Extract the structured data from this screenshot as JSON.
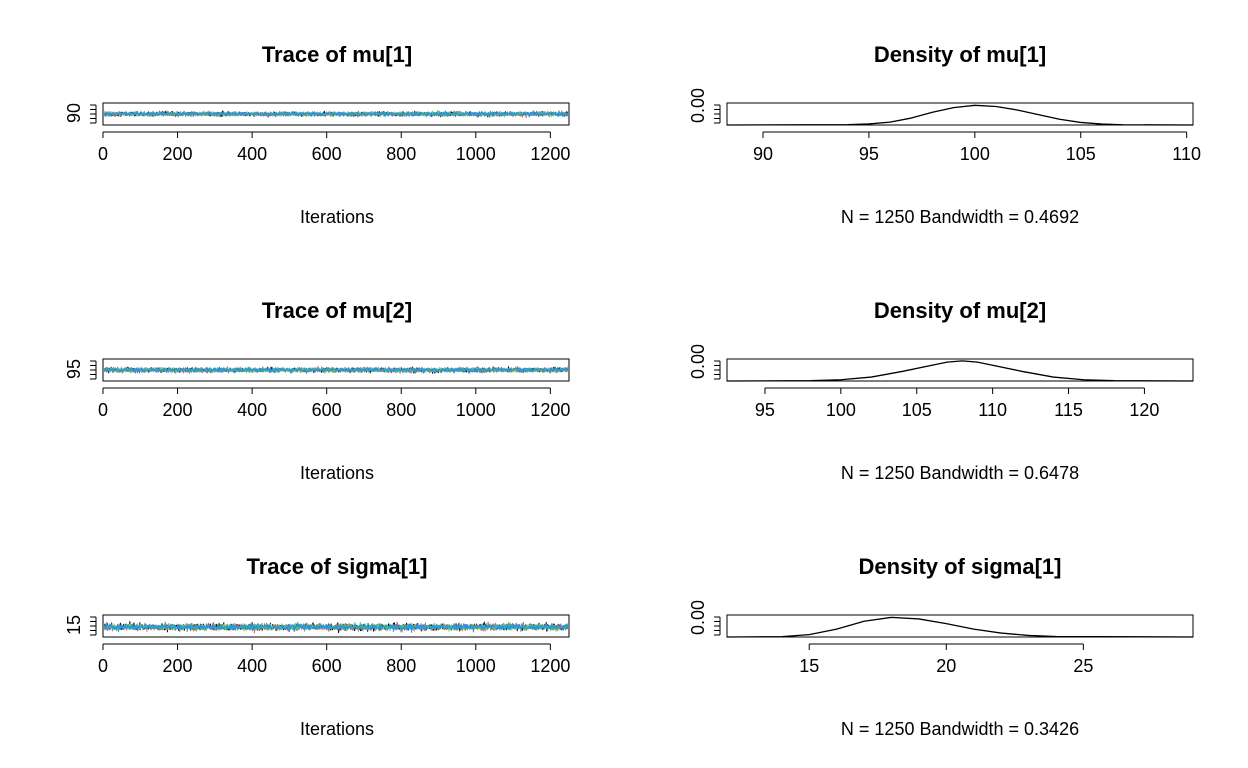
{
  "chart_data": [
    {
      "type": "line",
      "title": "Trace of mu[1]",
      "xlabel": "Iterations",
      "ylabel": "",
      "xlim": [
        0,
        1250
      ],
      "ylim": [
        88,
        112
      ],
      "x_ticks": [
        "0",
        "200",
        "400",
        "600",
        "800",
        "1000",
        "1200"
      ],
      "y_ticks": [
        "90"
      ],
      "chains": 4,
      "center": 100,
      "sd": 2.1,
      "series_colors": [
        "#000000",
        "#DF536B",
        "#61D04F",
        "#2297E6"
      ]
    },
    {
      "type": "area",
      "title": "Density of mu[1]",
      "xlabel": "N = 1250   Bandwidth = 0.4692",
      "ylabel": "",
      "xlim": [
        88.3,
        110.3
      ],
      "ylim": [
        0,
        0.19
      ],
      "x_ticks": [
        "90",
        "95",
        "100",
        "105",
        "110"
      ],
      "y_ticks": [
        "0.00"
      ],
      "x": [
        88.3,
        94,
        95,
        96,
        97,
        98,
        99,
        100,
        101,
        102,
        103,
        104,
        105,
        106,
        107,
        110.3
      ],
      "y": [
        0.0,
        0.003,
        0.009,
        0.025,
        0.06,
        0.11,
        0.15,
        0.17,
        0.16,
        0.13,
        0.09,
        0.05,
        0.022,
        0.008,
        0.002,
        0.0
      ]
    },
    {
      "type": "line",
      "title": "Trace of mu[2]",
      "xlabel": "Iterations",
      "ylabel": "",
      "xlim": [
        0,
        1250
      ],
      "ylim": [
        93,
        123
      ],
      "x_ticks": [
        "0",
        "200",
        "400",
        "600",
        "800",
        "1000",
        "1200"
      ],
      "y_ticks": [
        "95"
      ],
      "chains": 4,
      "center": 108,
      "sd": 2.9,
      "series_colors": [
        "#000000",
        "#DF536B",
        "#61D04F",
        "#2297E6"
      ]
    },
    {
      "type": "area",
      "title": "Density of mu[2]",
      "xlabel": "N = 1250   Bandwidth = 0.6478",
      "ylabel": "",
      "xlim": [
        92.5,
        123.2
      ],
      "ylim": [
        0,
        0.14
      ],
      "x_ticks": [
        "95",
        "100",
        "105",
        "110",
        "115",
        "120"
      ],
      "y_ticks": [
        "0.00"
      ],
      "x": [
        92.5,
        98,
        100,
        102,
        104,
        106,
        107,
        108,
        109,
        110,
        112,
        114,
        116,
        118,
        123.2
      ],
      "y": [
        0.0,
        0.002,
        0.008,
        0.025,
        0.06,
        0.1,
        0.12,
        0.128,
        0.12,
        0.1,
        0.06,
        0.025,
        0.008,
        0.002,
        0.0
      ]
    },
    {
      "type": "line",
      "title": "Trace of sigma[1]",
      "xlabel": "Iterations",
      "ylabel": "",
      "xlim": [
        0,
        1250
      ],
      "ylim": [
        13,
        24
      ],
      "x_ticks": [
        "0",
        "200",
        "400",
        "600",
        "800",
        "1000",
        "1200"
      ],
      "y_ticks": [
        "15"
      ],
      "chains": 4,
      "center": 18,
      "sd": 1.5,
      "series_colors": [
        "#000000",
        "#DF536B",
        "#61D04F",
        "#2297E6"
      ]
    },
    {
      "type": "area",
      "title": "Density of sigma[1]",
      "xlabel": "N = 1250   Bandwidth = 0.3426",
      "ylabel": "",
      "xlim": [
        12.0,
        29.0
      ],
      "ylim": [
        0,
        0.28
      ],
      "x_ticks": [
        "15",
        "20",
        "25"
      ],
      "y_ticks": [
        "0.00"
      ],
      "x": [
        12.0,
        14,
        15,
        16,
        17,
        18,
        19,
        20,
        21,
        22,
        23,
        24,
        29.0
      ],
      "y": [
        0.0,
        0.005,
        0.03,
        0.1,
        0.2,
        0.25,
        0.23,
        0.17,
        0.1,
        0.05,
        0.02,
        0.006,
        0.0
      ]
    }
  ]
}
